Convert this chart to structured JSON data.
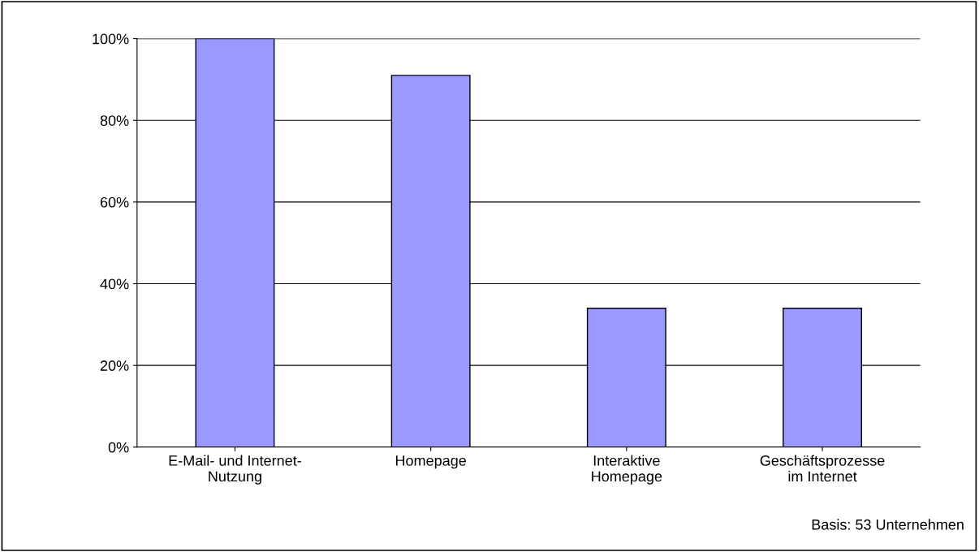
{
  "chart_data": {
    "type": "bar",
    "categories": [
      "E-Mail- und Internet-\nNutzung",
      "Homepage",
      "Interaktive\nHomepage",
      "Geschäftsprozesse\nim Internet"
    ],
    "values": [
      100,
      91,
      34,
      34
    ],
    "color": "#9999ff",
    "ylim": [
      0,
      100
    ],
    "yticks": [
      {
        "value": 0,
        "label": "0%"
      },
      {
        "value": 20,
        "label": "20%"
      },
      {
        "value": 40,
        "label": "40%"
      },
      {
        "value": 60,
        "label": "60%"
      },
      {
        "value": 80,
        "label": "80%"
      },
      {
        "value": 100,
        "label": "100%"
      }
    ],
    "grid": "y",
    "annotations": [
      "Basis: 53 Unternehmen"
    ]
  }
}
